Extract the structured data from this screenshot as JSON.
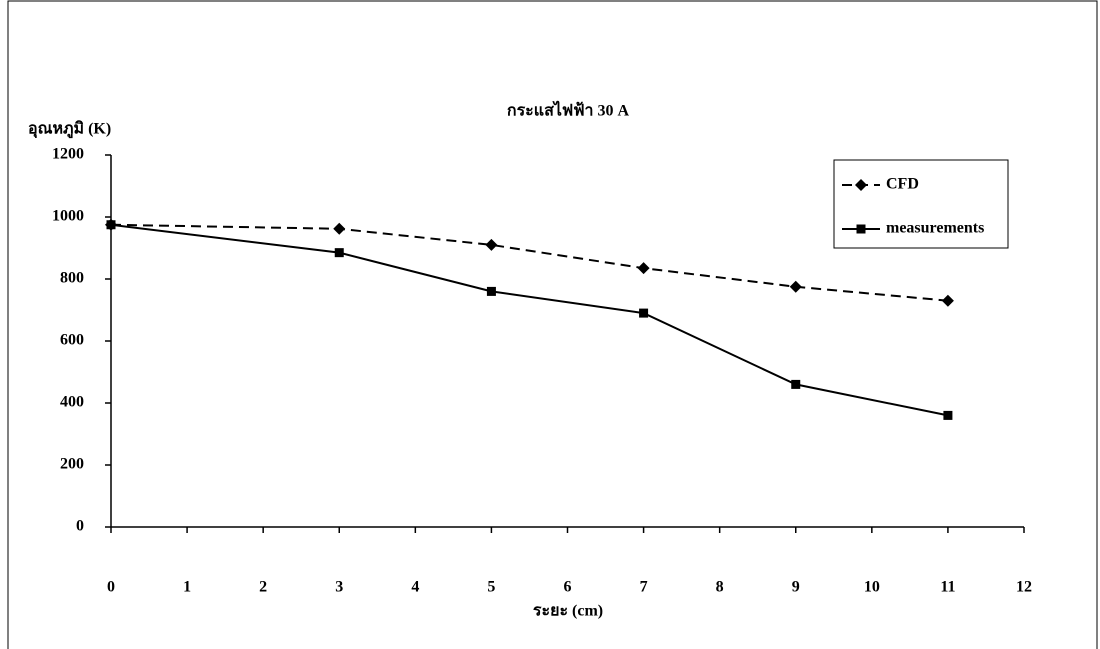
{
  "chart_data": {
    "type": "line",
    "title": "กระแสไฟฟ้า 30 A",
    "y_label": "อุณหภูมิ (K)",
    "x_label": "ระยะ (cm)",
    "x": [
      0,
      3,
      5,
      7,
      9,
      11
    ],
    "series": [
      {
        "name": "CFD",
        "color": "#000000",
        "line_style": "dashed",
        "marker": "diamond",
        "values": [
          975,
          962,
          910,
          835,
          775,
          730
        ]
      },
      {
        "name": "measurements",
        "color": "#000000",
        "line_style": "solid",
        "marker": "square",
        "values": [
          975,
          885,
          760,
          690,
          460,
          360
        ]
      }
    ],
    "xlim": [
      0,
      12
    ],
    "xticks": [
      0,
      1,
      2,
      3,
      4,
      5,
      6,
      7,
      8,
      9,
      10,
      11,
      12
    ],
    "ylim": [
      0,
      1200
    ],
    "yticks": [
      0,
      200,
      400,
      600,
      800,
      1000,
      1200
    ],
    "grid": false,
    "legend": "upper right"
  }
}
